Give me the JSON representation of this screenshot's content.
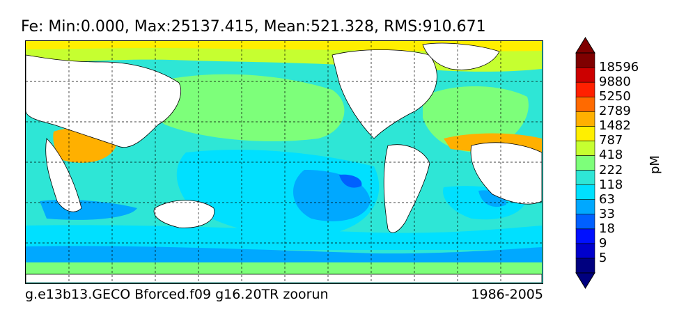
{
  "title": "Fe: Min:0.000, Max:25137.415, Mean:521.328, RMS:910.671",
  "footer": {
    "left": "g.e13b13.GECO Bforced.f09 g16.20TR zoorun",
    "right": "1986-2005"
  },
  "colorbar": {
    "unit": "pM",
    "levels": [
      "5",
      "9",
      "18",
      "33",
      "63",
      "118",
      "222",
      "418",
      "787",
      "1482",
      "2789",
      "5250",
      "9880",
      "18596"
    ],
    "colors": [
      "#00007f",
      "#0000cc",
      "#0010ff",
      "#0060ff",
      "#00a8ff",
      "#00e0ff",
      "#2ee6d6",
      "#7dff7a",
      "#c6ff30",
      "#ffef00",
      "#ffb000",
      "#ff6a00",
      "#ff2000",
      "#cc0000",
      "#7f0000"
    ]
  },
  "chart_data": {
    "type": "heatmap",
    "title": "Fe: Min:0.000, Max:25137.415, Mean:521.328, RMS:910.671",
    "variable": "Fe",
    "stats": {
      "min": 0.0,
      "max": 25137.415,
      "mean": 521.328,
      "rms": 910.671
    },
    "units": "pM",
    "contour_levels": [
      5,
      9,
      18,
      33,
      63,
      118,
      222,
      418,
      787,
      1482,
      2789,
      5250,
      9880,
      18596
    ],
    "projection": "global lat-lon map, Pacific-centered",
    "grid": true,
    "period": "1986-2005",
    "run": "g.e13b13.GECO Bforced.f09 g16.20TR zoorun"
  }
}
